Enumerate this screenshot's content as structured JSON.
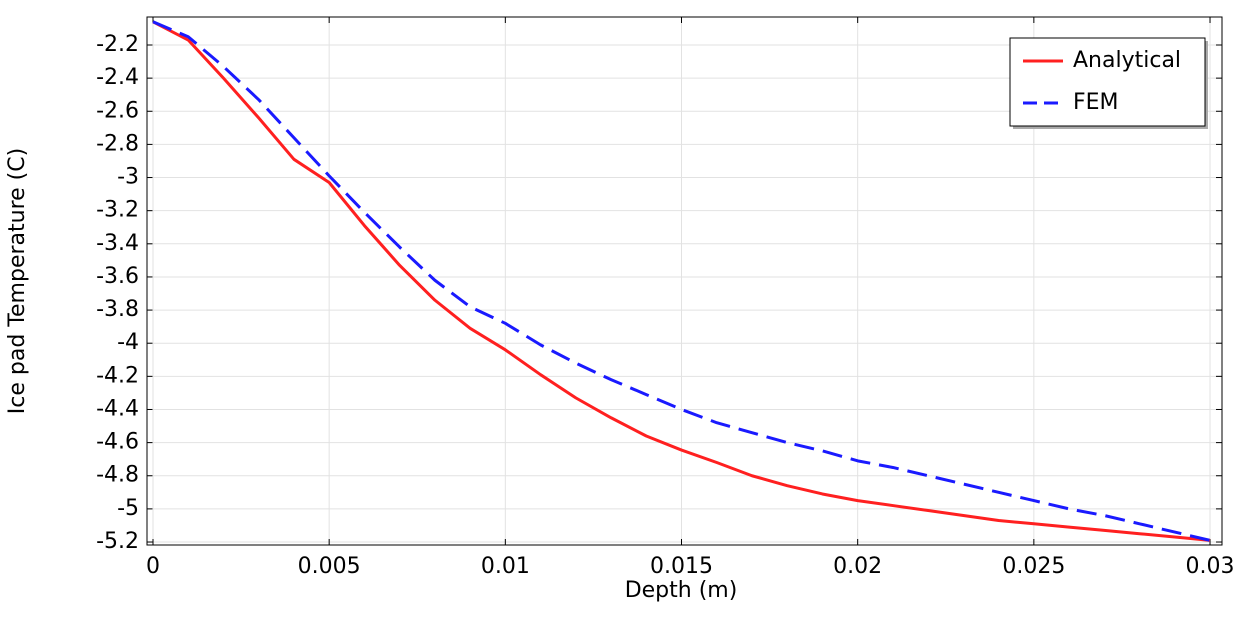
{
  "chart_data": {
    "type": "line",
    "xlabel": "Depth (m)",
    "ylabel": "Ice pad Temperature (C)",
    "x": [
      0,
      0.001,
      0.002,
      0.003,
      0.004,
      0.005,
      0.006,
      0.007,
      0.008,
      0.009,
      0.01,
      0.011,
      0.012,
      0.013,
      0.014,
      0.015,
      0.016,
      0.017,
      0.018,
      0.019,
      0.02,
      0.021,
      0.022,
      0.023,
      0.024,
      0.025,
      0.026,
      0.027,
      0.028,
      0.029,
      0.03
    ],
    "series": [
      {
        "name": "Analytical",
        "color": "#ff2020",
        "dash": false,
        "values": [
          -2.06,
          -2.17,
          -2.4,
          -2.64,
          -2.89,
          -3.03,
          -3.29,
          -3.53,
          -3.74,
          -3.91,
          -4.04,
          -4.19,
          -4.33,
          -4.45,
          -4.56,
          -4.645,
          -4.72,
          -4.8,
          -4.86,
          -4.91,
          -4.95,
          -4.98,
          -5.01,
          -5.04,
          -5.07,
          -5.09,
          -5.11,
          -5.13,
          -5.15,
          -5.17,
          -5.19
        ]
      },
      {
        "name": "FEM",
        "color": "#1a1aff",
        "dash": true,
        "values": [
          -2.06,
          -2.15,
          -2.33,
          -2.53,
          -2.76,
          -2.99,
          -3.21,
          -3.42,
          -3.62,
          -3.78,
          -3.88,
          -4.01,
          -4.12,
          -4.22,
          -4.31,
          -4.4,
          -4.48,
          -4.54,
          -4.6,
          -4.65,
          -4.71,
          -4.75,
          -4.8,
          -4.85,
          -4.9,
          -4.95,
          -5.0,
          -5.04,
          -5.09,
          -5.14,
          -5.19
        ]
      }
    ],
    "xlim": [
      -0.00017,
      0.03034
    ],
    "ylim": [
      -5.218,
      -2.031
    ],
    "xticks": [
      0,
      0.005,
      0.01,
      0.015,
      0.02,
      0.025,
      0.03
    ],
    "yticks": [
      -2.2,
      -2.4,
      -2.6,
      -2.8,
      -3,
      -3.2,
      -3.4,
      -3.6,
      -3.8,
      -4,
      -4.2,
      -4.4,
      -4.6,
      -4.8,
      -5,
      -5.2
    ],
    "grid": true,
    "legend": "upper right"
  }
}
